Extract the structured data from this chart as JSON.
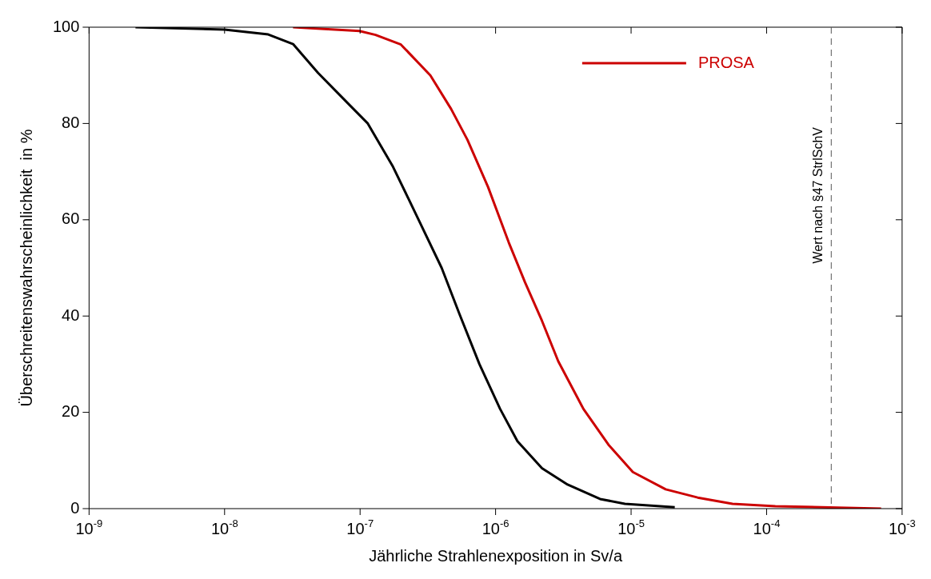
{
  "chart_data": {
    "type": "line",
    "xlabel": "Jährliche Strahlenexposition in Sv/a",
    "ylabel": "Überschreitenswahrscheinlichkeit  in %",
    "log": "x",
    "xlim": [
      1e-09,
      0.001
    ],
    "ylim": [
      0,
      100
    ],
    "xticks": [
      {
        "value": 1e-09,
        "label": "10$^{-9}$"
      },
      {
        "value": 1e-08,
        "label": "10$^{-8}$"
      },
      {
        "value": 1e-07,
        "label": "10$^{-7}$"
      },
      {
        "value": 1e-06,
        "label": "10$^{-6}$"
      },
      {
        "value": 1e-05,
        "label": "10$^{-5}$"
      },
      {
        "value": 0.0001,
        "label": "10$^{-4}$"
      },
      {
        "value": 0.001,
        "label": "10$^{-3}$"
      }
    ],
    "yticks": [
      0,
      20,
      40,
      60,
      80,
      100
    ],
    "grid": false,
    "legend": "top right",
    "marker": "none",
    "line_style": "solid",
    "series": [
      {
        "name": "PROSA",
        "color": "#cc0000",
        "x": [
          3.2e-08,
          9.9e-08,
          1.3e-07,
          2e-07,
          3.3e-07,
          4.7e-07,
          6.2e-07,
          8.8e-07,
          1.25e-06,
          1.65e-06,
          2.2e-06,
          2.9e-06,
          4.45e-06,
          6.8e-06,
          1.03e-05,
          1.8e-05,
          3.1e-05,
          5.6e-05,
          0.000116,
          0.0007
        ],
        "values": [
          100,
          99.2,
          98.4,
          96.4,
          90,
          83,
          76.6,
          66.8,
          55.3,
          47,
          39,
          30.6,
          20.7,
          13.3,
          7.6,
          4,
          2.3,
          1,
          0.5,
          0
        ]
      },
      {
        "color": "#000000",
        "x": [
          2.2e-09,
          1e-08,
          2.1e-08,
          3.2e-08,
          4.9e-08,
          8.6e-08,
          1.14e-07,
          1.75e-07,
          2.6e-07,
          4e-07,
          5.4e-07,
          7.6e-07,
          1.08e-06,
          1.45e-06,
          2.2e-06,
          3.4e-06,
          5.9e-06,
          9e-06,
          2.1e-05
        ],
        "values": [
          100,
          99.5,
          98.5,
          96.5,
          90.5,
          83.5,
          80,
          71,
          61,
          50,
          40.5,
          30,
          20.7,
          14,
          8.4,
          5,
          2,
          1,
          0.3
        ]
      }
    ],
    "ref_lines": [
      {
        "axis": "x",
        "value": 0.0003,
        "label": "Wert nach §47 StrlSchV",
        "color": "#555555",
        "line_style": "dashed"
      }
    ]
  }
}
